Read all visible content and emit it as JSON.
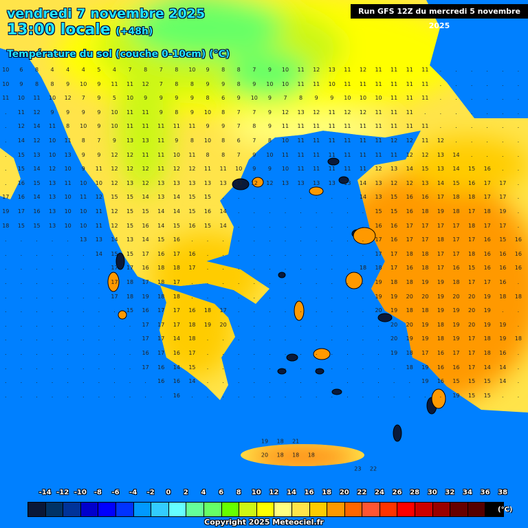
{
  "header": {
    "date": "vendredi 7 novembre 2025",
    "time": "13:00 locale",
    "lead": "(+48h)",
    "parameter": "Température du sol (couche 0-10cm) (°C)",
    "run": "Run GFS 12Z du mercredi 5 novembre 2025"
  },
  "colors": {
    "sea": "#0080ff",
    "islands": "#0a1a3a"
  },
  "legend": {
    "labels": [
      "-14",
      "-12",
      "-10",
      "-8",
      "-6",
      "-4",
      "-2",
      "0",
      "2",
      "4",
      "6",
      "8",
      "10",
      "12",
      "14",
      "16",
      "18",
      "20",
      "22",
      "24",
      "26",
      "28",
      "30",
      "32",
      "34",
      "36",
      "38"
    ],
    "swatches": [
      "#0a1838",
      "#003366",
      "#003399",
      "#0000cc",
      "#0000ff",
      "#0033ff",
      "#0099ff",
      "#33ccff",
      "#66ffff",
      "#66ff99",
      "#66ff66",
      "#66ff00",
      "#ccf714",
      "#ffff00",
      "#ffff80",
      "#ffe44a",
      "#ffcc00",
      "#ff9900",
      "#ff6600",
      "#ff5533",
      "#ff3300",
      "#ff0000",
      "#cc0000",
      "#990000",
      "#660000",
      "#550000",
      "#000000"
    ],
    "unit": "(°C)"
  },
  "copyright": "Copyright 2025 Meteociel.fr",
  "grid_values": [
    "10 6 8 4 4 4 5 4 7 8 7 8 10 9 8 8 7 9 10 11 12 13 11 12 11 11 11 11 . . . . . .",
    "10 9 8 8 9 10 9 11 11 12 7 8 8 9 9 8 9 10 10 11 11 10 11 11 11 11 11 11 . . . . . .",
    "11 10 11 10 12 7 9 5 10 9 9 9 9 8 6 9 10 9 7 8 9 9 10 10 10 11 11 11 . . . . . .",
    ". 11 12 9 9 9 9 10 11 11 9 8 9 10 8 7 7 9 12 13 12 11 12 12 11 11 11 . . . . . . .",
    ". 12 14 11 8 10 9 10 11 11 11 11 11 9 9 7 8 9 11 11 11 11 11 11 11 11 11 11 . . . . . .",
    ". 14 12 10 11 8 7 9 13 13 11 9 8 10 8 6 7 8 10 11 11 11 11 11 11 12 12 11 12 . . . . .",
    ". 15 13 10 13 9 9 12 12 11 11 10 11 8 8 7 9 10 11 11 11 11 11 11 11 11 12 12 13 14 . . . .",
    ". 15 14 12 10 9 11 12 12 12 11 12 12 11 11 10 9 9 10 11 11 11 11 11 12 13 14 15 13 14 15 16 . .",
    ". 16 15 13 11 10 10 12 13 12 13 13 13 13 13 13 12 12 13 13 13 13 13 14 13 12 12 13 14 15 16 17 17 .",
    "17 16 14 13 10 11 12 15 15 14 13 14 15 15 . . . . . . . . . 14 13 15 16 16 17 18 18 17 17 .",
    "19 17 16 13 10 10 11 12 15 15 14 14 15 16 14 . . . . . . . . . 15 15 16 18 19 18 17 18 19 .",
    "18 15 15 13 10 10 11 12 15 16 14 15 16 15 14 . . . . . . . . . 16 16 17 17 17 17 18 17 17 .",
    ". . . . . 13 13 14 13 14 15 16 . . . . . . . . . . . . 17 16 17 17 18 17 17 16 15 16",
    ". . . . . . 14 15 15 17 16 17 16 . . . . . . . . . . . 17 17 18 18 17 17 18 16 16 16",
    ". . . . . . . 17 17 16 18 18 17 . . . . . . . . . . 18 18 17 16 18 17 16 15 16 16 16",
    ". . . . . . . 17 18 17 18 17 . . . . . . . . . . . . 19 18 18 19 19 18 17 17 16 .",
    ". . . . . . . 17 18 19 18 18 . . . . . . . . . . . . 19 19 20 20 19 20 20 19 18 18",
    ". . . . . . . . 15 16 17 17 16 18 17 . . . . . . . . . 20 19 18 18 19 19 20 19 . .",
    ". . . . . . . . . 17 17 17 18 19 20 . . . . . . . . . . 20 20 19 18 19 20 19 19 .",
    ". . . . . . . . . 17 17 14 18 . . . . . . . . . . . . 20 19 19 18 19 17 18 19 18",
    ". . . . . . . . . 16 17 16 17 . . . . . . . . . . . . 19 18 17 16 17 17 18 16 .",
    ". . . . . . . . . 17 16 14 15 . . . . . . . . . . . . . 18 19 16 16 17 14 14 .",
    ". . . . . . . . . . 16 16 14 . . . . . . . . . . . . . . 19 16 15 15 15 14 .",
    ". . . . . . . . . . . 16 . . . . . . . . . . . . . . . . . 19 15 15 . ."
  ],
  "crete_values": [
    "19",
    "18",
    "21",
    "20",
    "18",
    "18",
    "18",
    "23",
    "22"
  ]
}
